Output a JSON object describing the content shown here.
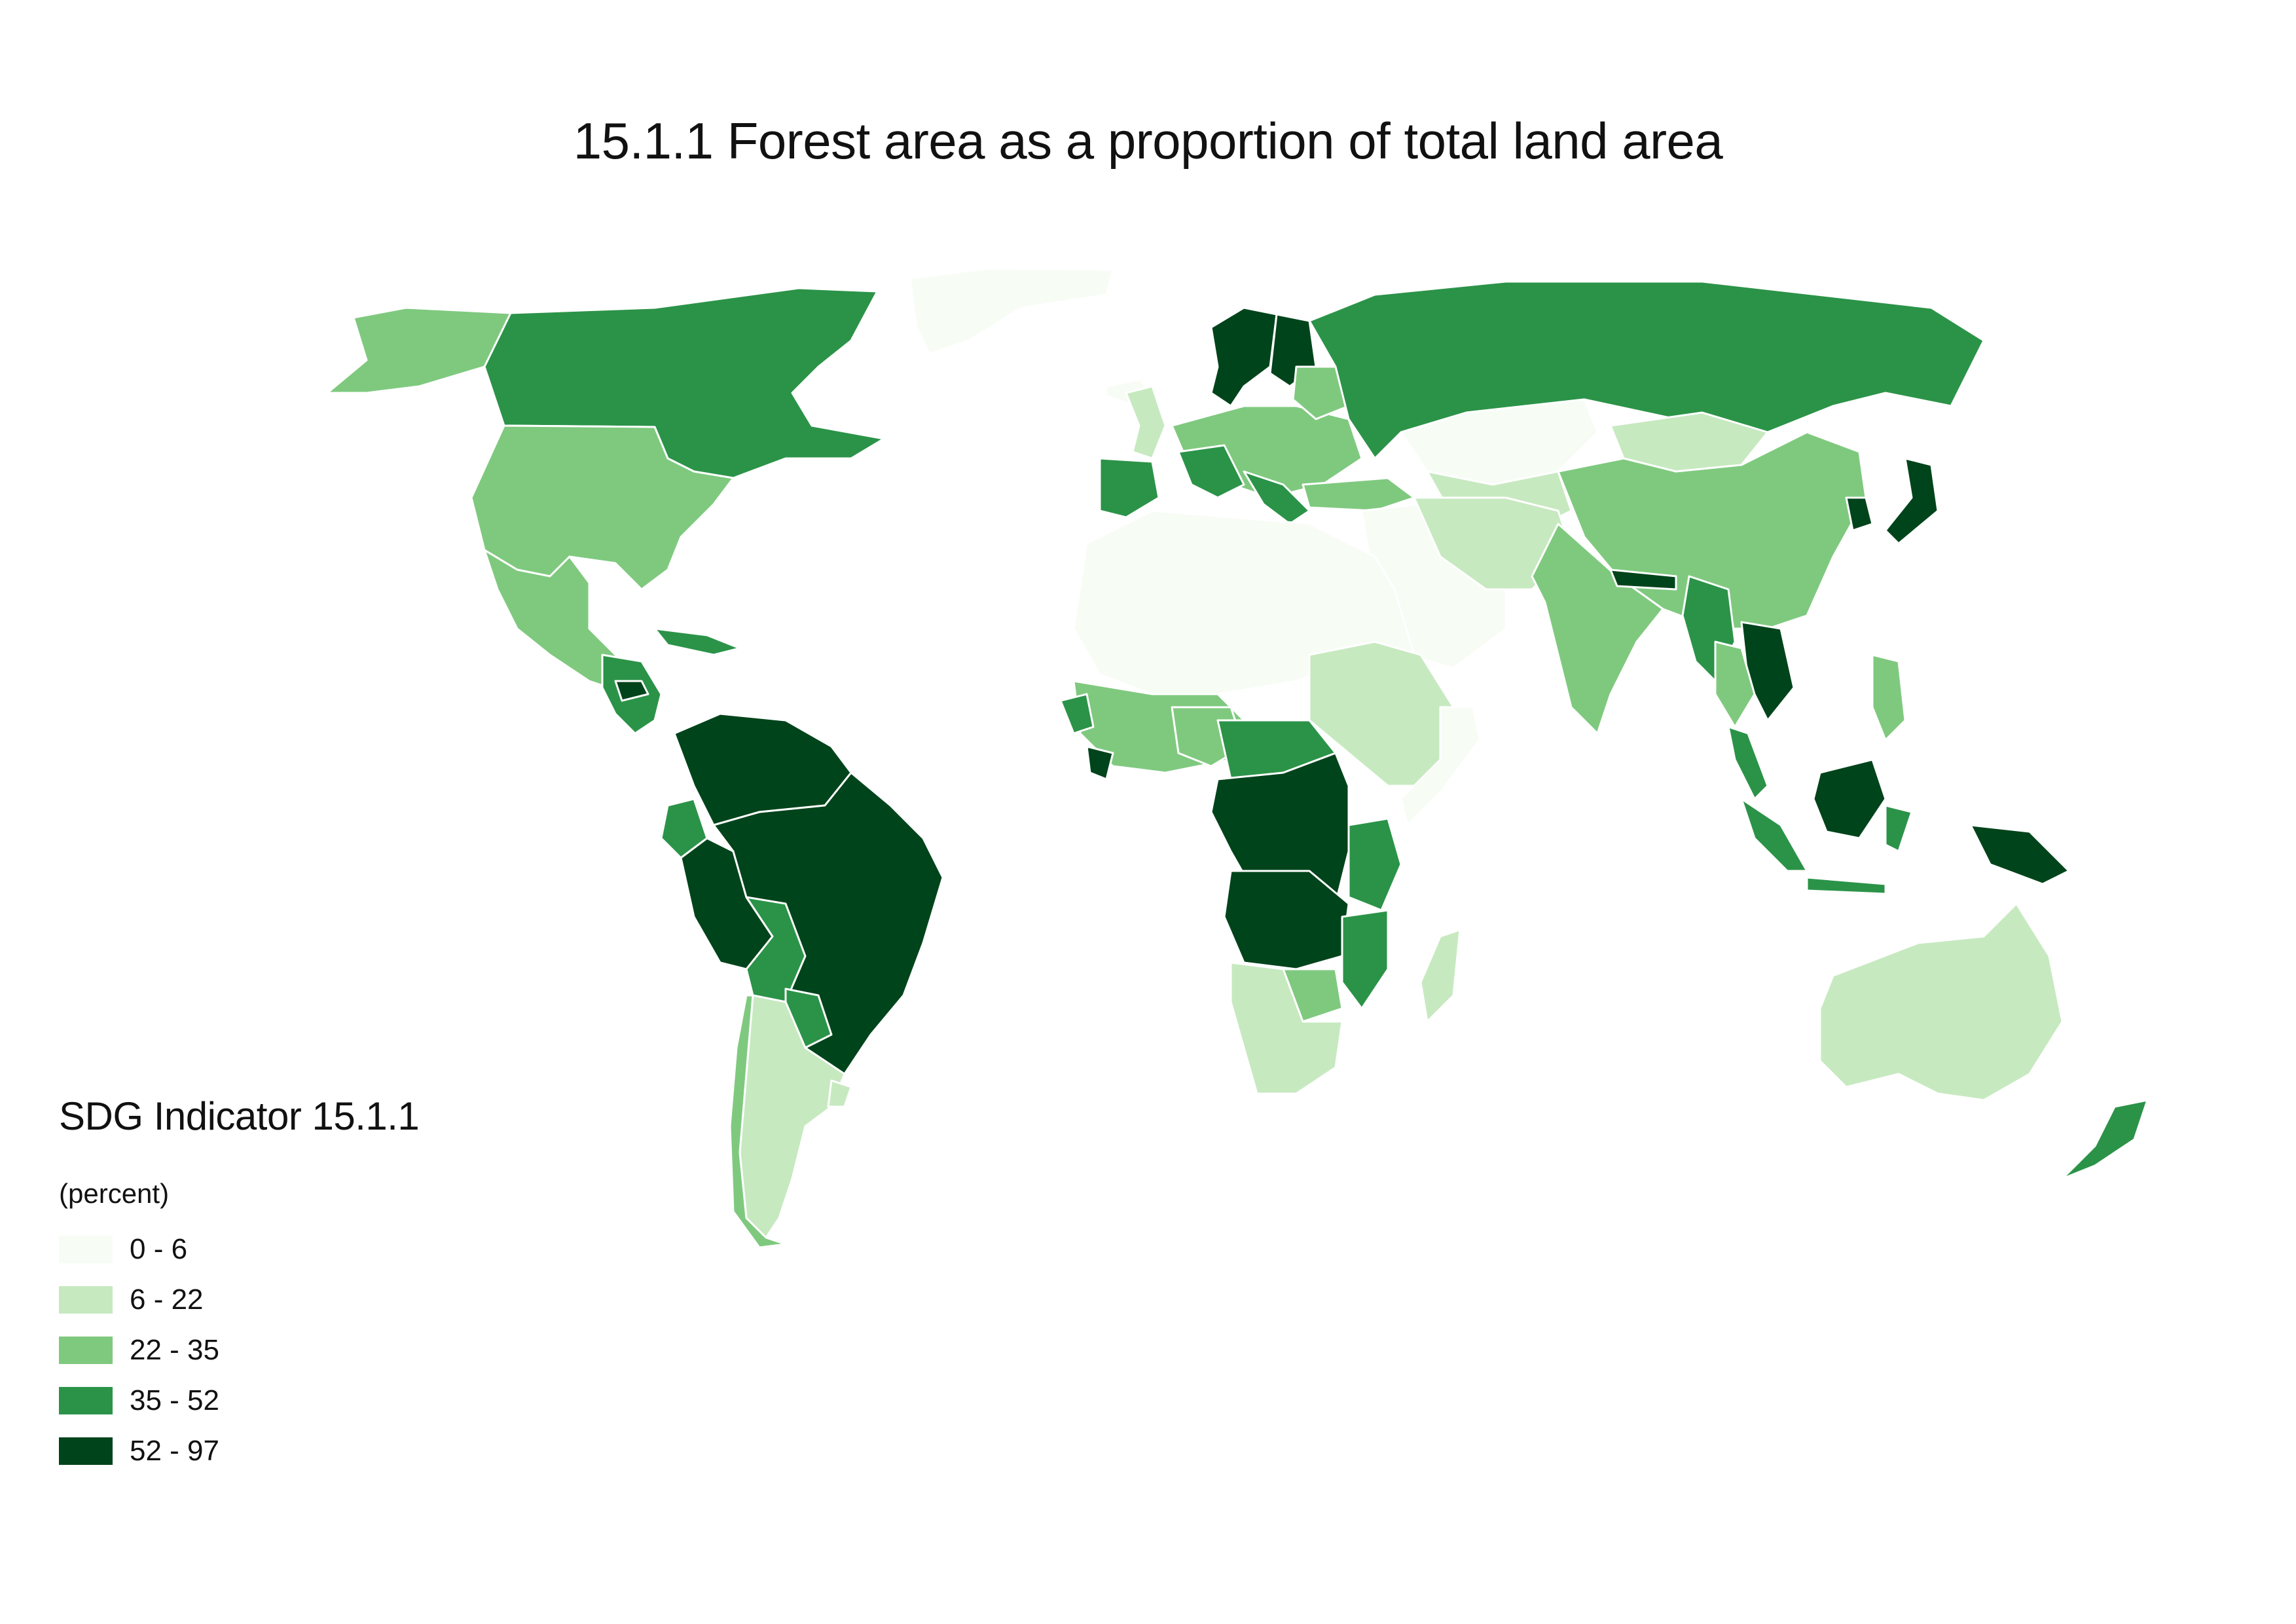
{
  "title": "15.1.1 Forest area as a proportion of total land area",
  "legend": {
    "title": "SDG Indicator 15.1.1",
    "unit": "(percent)",
    "classes": [
      {
        "label": "0 - 6",
        "color": "#f7fcf5"
      },
      {
        "label": "6 - 22",
        "color": "#c7e9c0"
      },
      {
        "label": "22 - 35",
        "color": "#7fc97f"
      },
      {
        "label": "35 - 52",
        "color": "#2b9348"
      },
      {
        "label": "52 - 97",
        "color": "#00441b"
      }
    ]
  },
  "colors": {
    "c0": "#f7fcf5",
    "c1": "#c7e9c0",
    "c2": "#7fc97f",
    "c3": "#2b9348",
    "c4": "#00441b",
    "border": "#ffffff"
  }
}
